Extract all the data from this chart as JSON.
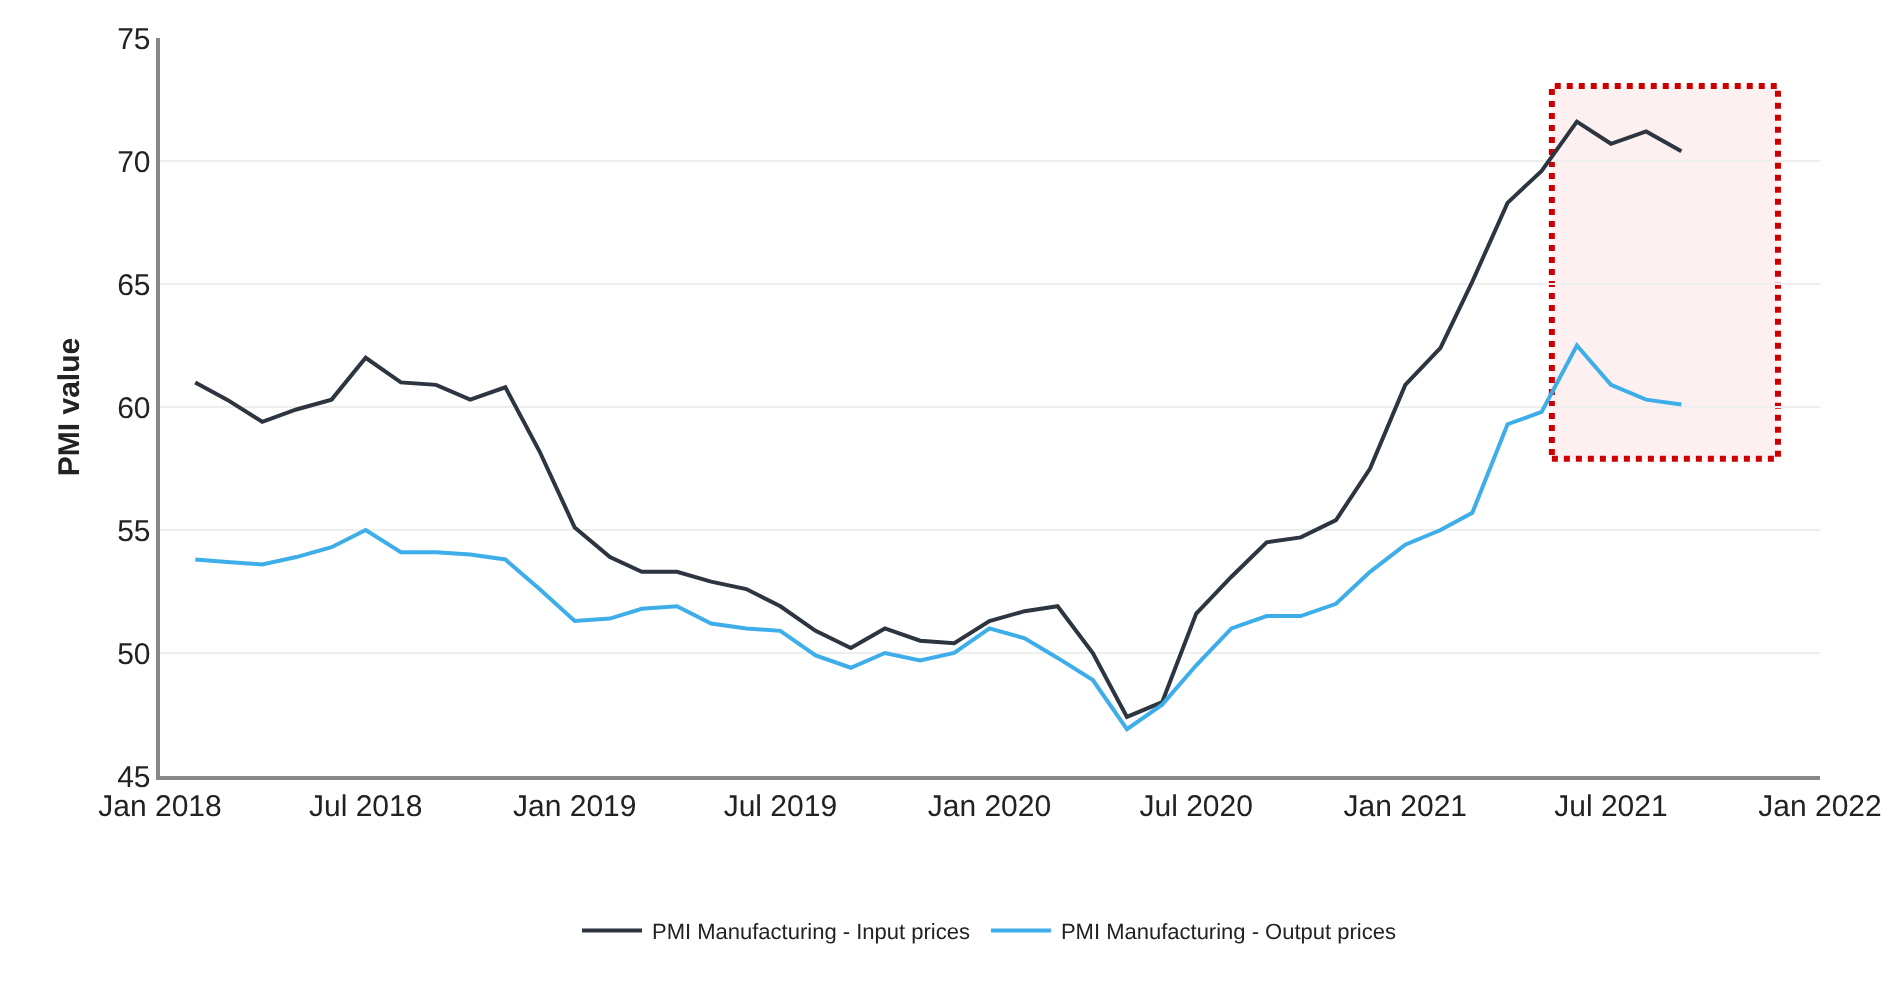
{
  "chart_data": {
    "type": "line",
    "ylabel": "PMI value",
    "x": [
      "2018-02",
      "2018-03",
      "2018-04",
      "2018-05",
      "2018-06",
      "2018-07",
      "2018-08",
      "2018-09",
      "2018-10",
      "2018-11",
      "2018-12",
      "2019-01",
      "2019-02",
      "2019-03",
      "2019-04",
      "2019-05",
      "2019-06",
      "2019-07",
      "2019-08",
      "2019-09",
      "2019-10",
      "2019-11",
      "2019-12",
      "2020-01",
      "2020-02",
      "2020-03",
      "2020-04",
      "2020-05",
      "2020-06",
      "2020-07",
      "2020-08",
      "2020-09",
      "2020-10",
      "2020-11",
      "2020-12",
      "2021-01",
      "2021-02",
      "2021-03",
      "2021-04",
      "2021-05",
      "2021-06",
      "2021-07",
      "2021-08",
      "2021-09"
    ],
    "series": [
      {
        "name": "PMI Manufacturing - Input prices",
        "color": "#2d3540",
        "values": [
          61.0,
          60.3,
          59.4,
          59.9,
          60.3,
          62.0,
          61.0,
          60.9,
          60.3,
          60.8,
          58.2,
          55.1,
          53.9,
          53.3,
          53.3,
          52.9,
          52.6,
          51.9,
          50.9,
          50.2,
          51.0,
          50.5,
          50.4,
          51.3,
          51.7,
          51.9,
          50.0,
          47.4,
          48.0,
          51.6,
          53.1,
          54.5,
          54.7,
          55.4,
          57.5,
          60.9,
          62.4,
          65.1,
          68.3,
          69.6,
          71.6,
          70.7,
          71.2,
          70.4
        ]
      },
      {
        "name": "PMI Manufacturing - Output prices",
        "color": "#3daee9",
        "values": [
          53.8,
          53.7,
          53.6,
          53.9,
          54.3,
          55.0,
          54.1,
          54.1,
          54.0,
          53.8,
          52.6,
          51.3,
          51.4,
          51.8,
          51.9,
          51.2,
          51.0,
          50.9,
          49.9,
          49.4,
          50.0,
          49.7,
          50.0,
          51.0,
          50.6,
          49.8,
          48.9,
          46.9,
          47.9,
          49.5,
          51.0,
          51.5,
          51.5,
          52.0,
          53.3,
          54.4,
          55.0,
          55.7,
          59.3,
          59.8,
          62.5,
          60.9,
          60.3,
          60.1
        ]
      }
    ],
    "xlim": [
      "2018-01-01",
      "2022-01-01"
    ],
    "xticks": [
      {
        "value": "2018-01-01",
        "label": "Jan 2018"
      },
      {
        "value": "2018-07-01",
        "label": "Jul 2018"
      },
      {
        "value": "2019-01-01",
        "label": "Jan 2019"
      },
      {
        "value": "2019-07-01",
        "label": "Jul 2019"
      },
      {
        "value": "2020-01-01",
        "label": "Jan 2020"
      },
      {
        "value": "2020-07-01",
        "label": "Jul 2020"
      },
      {
        "value": "2021-01-01",
        "label": "Jan 2021"
      },
      {
        "value": "2021-07-01",
        "label": "Jul 2021"
      },
      {
        "value": "2022-01-01",
        "label": "Jan 2022"
      }
    ],
    "ylim": [
      45,
      75
    ],
    "yticks": [
      45,
      50,
      55,
      60,
      65,
      70,
      75
    ],
    "grid": "y",
    "legend": "bottom",
    "marker": "none",
    "line_style": "solid",
    "bands": [
      {
        "axis": "x",
        "from": "2021-05-10",
        "to": "2021-11-25",
        "color": "#cc0000"
      }
    ]
  }
}
